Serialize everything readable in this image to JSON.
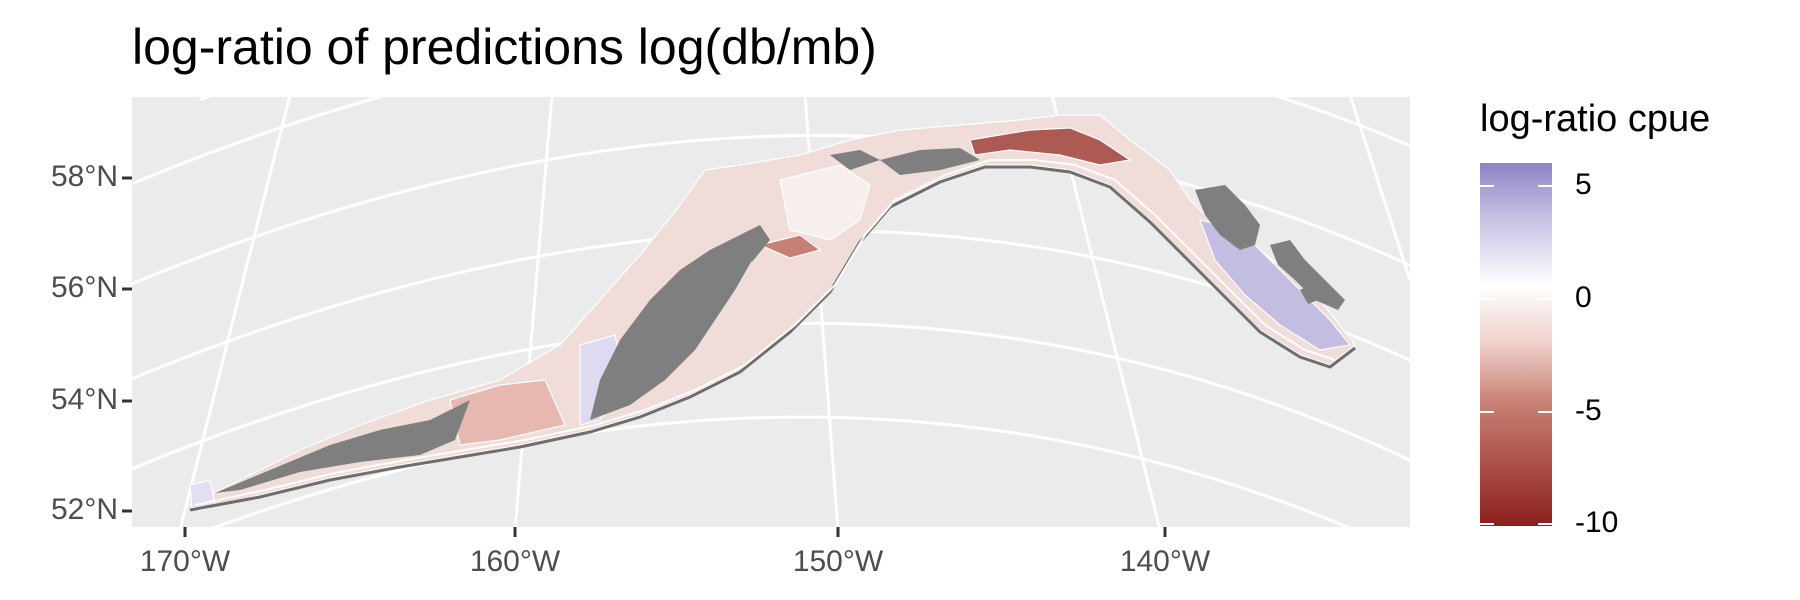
{
  "title": "log-ratio of predictions log(db/mb)",
  "map": {
    "lat_ticks": [
      "58°N",
      "56°N",
      "54°N",
      "52°N"
    ],
    "lon_ticks": [
      "170°W",
      "160°W",
      "150°W",
      "140°W"
    ],
    "panel_background": "#ebebeb",
    "graticule_color": "#ffffff",
    "land_color": "#7f7f7f",
    "shelf_fill_default": "#f2e6e6"
  },
  "legend": {
    "title": "log-ratio cpue",
    "ticks": [
      "5",
      "0",
      "-5",
      "-10"
    ],
    "range": [
      -11,
      6.5
    ],
    "colors": {
      "high": "#8d82c4",
      "mid": "#ffffff",
      "low": "#8c201d"
    }
  }
}
